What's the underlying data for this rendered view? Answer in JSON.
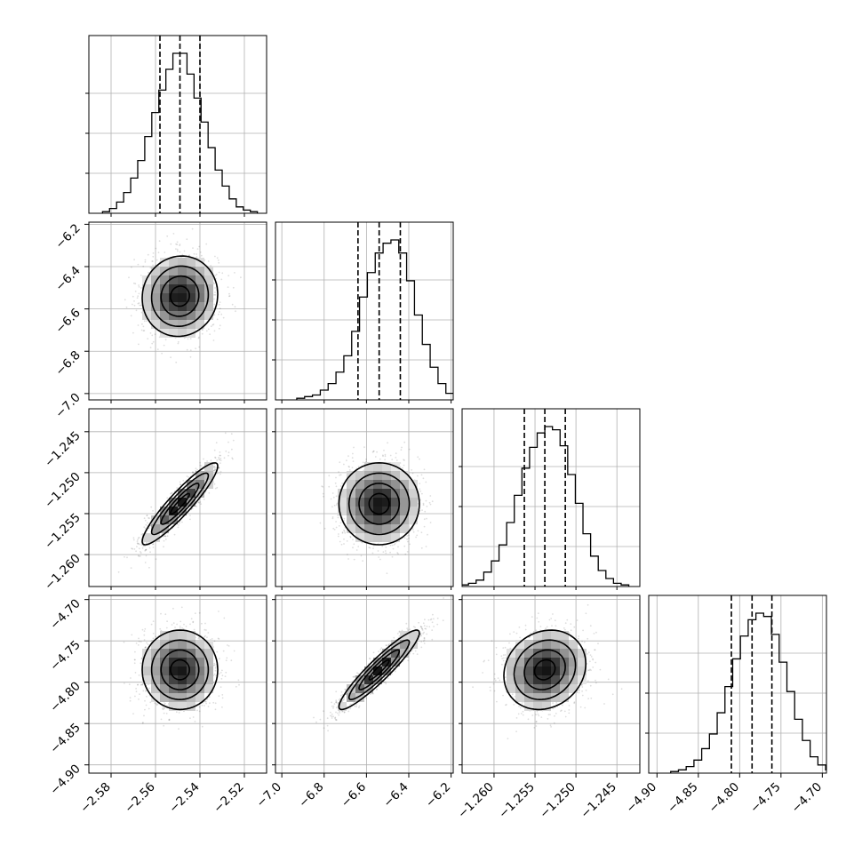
{
  "chart_data": {
    "type": "corner",
    "title": "",
    "parameters": [
      {
        "range": [
          -2.59,
          -2.51
        ],
        "ticks": [
          -2.58,
          -2.56,
          -2.54,
          -2.52
        ],
        "tick_labels": [
          "−2.58",
          "−2.56",
          "−2.54",
          "−2.52"
        ],
        "median": -2.549,
        "quantiles_16_84": [
          -2.558,
          -2.54
        ],
        "sigma": 0.0085,
        "hist_counts": [
          0.01,
          0.03,
          0.07,
          0.13,
          0.22,
          0.33,
          0.48,
          0.63,
          0.77,
          0.9,
          1.0,
          1.0,
          0.87,
          0.72,
          0.57,
          0.41,
          0.27,
          0.17,
          0.09,
          0.04,
          0.02,
          0.01
        ]
      },
      {
        "range": [
          -7.03,
          -6.19
        ],
        "ticks": [
          -7.0,
          -6.8,
          -6.6,
          -6.4,
          -6.2
        ],
        "tick_labels": [
          "−7.0",
          "−6.8",
          "−6.6",
          "−6.4",
          "−6.2"
        ],
        "median": -6.54,
        "quantiles_16_84": [
          -6.64,
          -6.44
        ],
        "sigma": 0.095,
        "hist_counts": [
          0.01,
          0.02,
          0.03,
          0.06,
          0.1,
          0.17,
          0.27,
          0.42,
          0.63,
          0.78,
          0.9,
          0.96,
          0.98,
          0.9,
          0.73,
          0.52,
          0.34,
          0.2,
          0.1,
          0.04,
          0.02
        ]
      },
      {
        "range": [
          -1.2639,
          -1.2422
        ],
        "ticks": [
          -1.26,
          -1.255,
          -1.25,
          -1.245
        ],
        "tick_labels": [
          "−1.260",
          "−1.255",
          "−1.250",
          "−1.245"
        ],
        "median": -1.2538,
        "quantiles_16_84": [
          -1.2563,
          -1.2513
        ],
        "sigma": 0.0025,
        "hist_counts": [
          0.01,
          0.02,
          0.04,
          0.09,
          0.16,
          0.26,
          0.4,
          0.57,
          0.74,
          0.87,
          0.96,
          1.0,
          0.98,
          0.88,
          0.7,
          0.52,
          0.33,
          0.19,
          0.1,
          0.05,
          0.02,
          0.01
        ]
      },
      {
        "range": [
          -4.91,
          -4.695
        ],
        "ticks": [
          -4.9,
          -4.85,
          -4.8,
          -4.75,
          -4.7
        ],
        "tick_labels": [
          "−4.90",
          "−4.85",
          "−4.80",
          "−4.75",
          "−4.70"
        ],
        "median": -4.785,
        "quantiles_16_84": [
          -4.81,
          -4.761
        ],
        "sigma": 0.024,
        "hist_counts": [
          0.01,
          0.02,
          0.04,
          0.08,
          0.15,
          0.24,
          0.37,
          0.53,
          0.7,
          0.84,
          0.94,
          0.98,
          0.96,
          0.85,
          0.68,
          0.5,
          0.33,
          0.2,
          0.1,
          0.05,
          0.02
        ]
      }
    ],
    "correlations": {
      "0-1": 0.05,
      "0-2": 0.92,
      "0-3": 0.0,
      "1-2": 0.0,
      "1-3": 0.93,
      "2-3": 0.15
    },
    "contour_levels_sigma": [
      0.5,
      1.0,
      1.5,
      2.0
    ],
    "grid": true,
    "legend": "none"
  }
}
